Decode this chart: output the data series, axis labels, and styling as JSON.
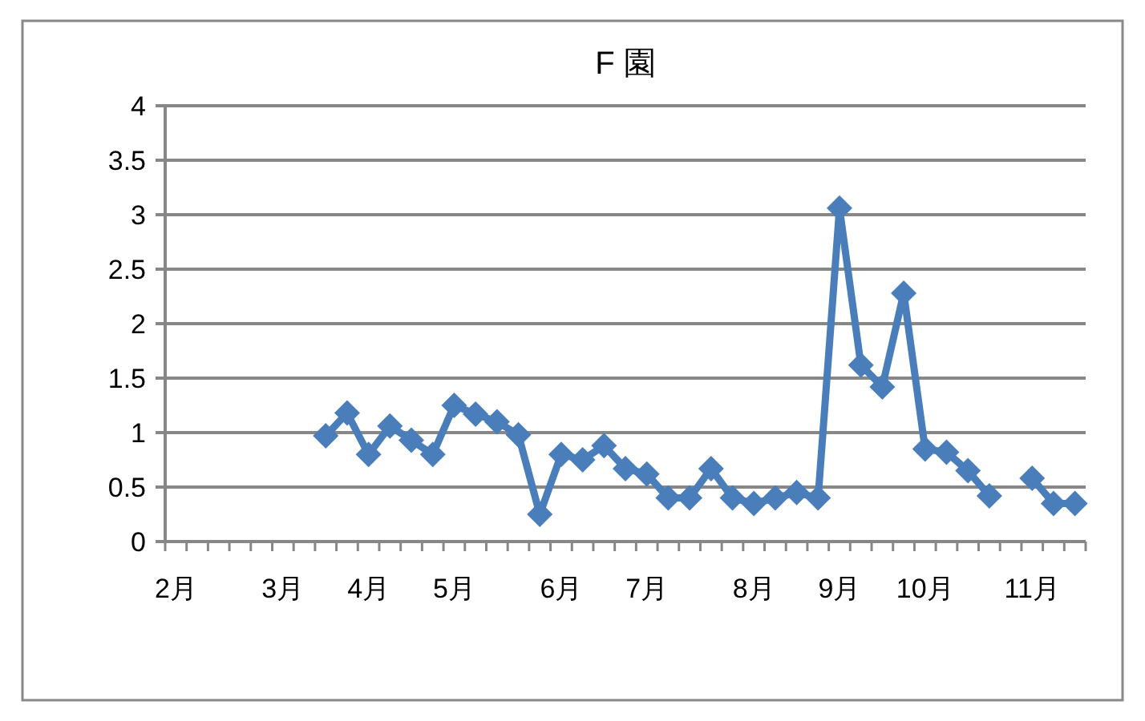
{
  "chart_data": {
    "type": "line",
    "title": "F 園",
    "categories": [
      "2月",
      null,
      null,
      null,
      null,
      "3月",
      null,
      null,
      null,
      "4月",
      null,
      null,
      null,
      "5月",
      null,
      null,
      null,
      null,
      "6月",
      null,
      null,
      null,
      "7月",
      null,
      null,
      null,
      null,
      "8月",
      null,
      null,
      null,
      "9月",
      null,
      null,
      null,
      "10月",
      null,
      null,
      null,
      null,
      "11月",
      null,
      null
    ],
    "series": [
      {
        "color": "#4a7ebb",
        "values": [
          null,
          null,
          null,
          null,
          null,
          null,
          null,
          0.97,
          1.18,
          0.8,
          1.06,
          0.93,
          0.8,
          1.25,
          1.17,
          1.1,
          0.98,
          0.25,
          0.8,
          0.75,
          0.88,
          0.67,
          0.62,
          0.4,
          0.4,
          0.67,
          0.4,
          0.35,
          0.4,
          0.45,
          0.4,
          3.06,
          1.62,
          1.42,
          2.28,
          0.85,
          0.82,
          0.65,
          0.42,
          null,
          0.58,
          0.35,
          0.35
        ]
      }
    ],
    "ylim": [
      0,
      4
    ],
    "yticks": [
      0,
      0.5,
      1,
      1.5,
      2,
      2.5,
      3,
      3.5,
      4
    ],
    "grid": "y",
    "marker": "diamond",
    "line_style": "solid"
  }
}
